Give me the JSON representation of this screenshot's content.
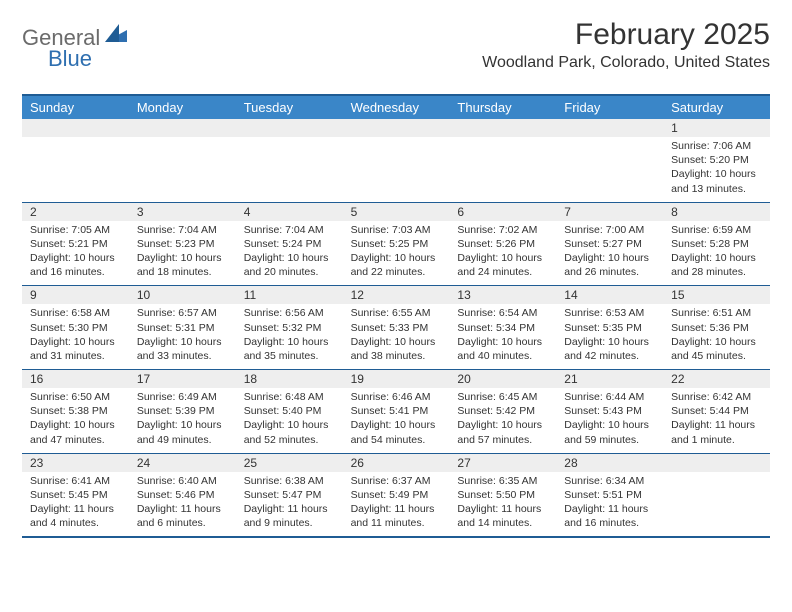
{
  "logo": {
    "part1": "General",
    "part2": "Blue"
  },
  "title": "February 2025",
  "location": "Woodland Park, Colorado, United States",
  "colors": {
    "header_bar": "#3a86c8",
    "header_border": "#1f5c94",
    "num_bg": "#eeeeee",
    "text": "#333333",
    "logo_gray": "#6b6b6b",
    "logo_blue": "#2f6fb0",
    "white": "#ffffff"
  },
  "day_names": [
    "Sunday",
    "Monday",
    "Tuesday",
    "Wednesday",
    "Thursday",
    "Friday",
    "Saturday"
  ],
  "weeks": [
    {
      "nums": [
        "",
        "",
        "",
        "",
        "",
        "",
        "1"
      ],
      "cells": [
        null,
        null,
        null,
        null,
        null,
        null,
        {
          "sr": "Sunrise: 7:06 AM",
          "ss": "Sunset: 5:20 PM",
          "d1": "Daylight: 10 hours",
          "d2": "and 13 minutes."
        }
      ]
    },
    {
      "nums": [
        "2",
        "3",
        "4",
        "5",
        "6",
        "7",
        "8"
      ],
      "cells": [
        {
          "sr": "Sunrise: 7:05 AM",
          "ss": "Sunset: 5:21 PM",
          "d1": "Daylight: 10 hours",
          "d2": "and 16 minutes."
        },
        {
          "sr": "Sunrise: 7:04 AM",
          "ss": "Sunset: 5:23 PM",
          "d1": "Daylight: 10 hours",
          "d2": "and 18 minutes."
        },
        {
          "sr": "Sunrise: 7:04 AM",
          "ss": "Sunset: 5:24 PM",
          "d1": "Daylight: 10 hours",
          "d2": "and 20 minutes."
        },
        {
          "sr": "Sunrise: 7:03 AM",
          "ss": "Sunset: 5:25 PM",
          "d1": "Daylight: 10 hours",
          "d2": "and 22 minutes."
        },
        {
          "sr": "Sunrise: 7:02 AM",
          "ss": "Sunset: 5:26 PM",
          "d1": "Daylight: 10 hours",
          "d2": "and 24 minutes."
        },
        {
          "sr": "Sunrise: 7:00 AM",
          "ss": "Sunset: 5:27 PM",
          "d1": "Daylight: 10 hours",
          "d2": "and 26 minutes."
        },
        {
          "sr": "Sunrise: 6:59 AM",
          "ss": "Sunset: 5:28 PM",
          "d1": "Daylight: 10 hours",
          "d2": "and 28 minutes."
        }
      ]
    },
    {
      "nums": [
        "9",
        "10",
        "11",
        "12",
        "13",
        "14",
        "15"
      ],
      "cells": [
        {
          "sr": "Sunrise: 6:58 AM",
          "ss": "Sunset: 5:30 PM",
          "d1": "Daylight: 10 hours",
          "d2": "and 31 minutes."
        },
        {
          "sr": "Sunrise: 6:57 AM",
          "ss": "Sunset: 5:31 PM",
          "d1": "Daylight: 10 hours",
          "d2": "and 33 minutes."
        },
        {
          "sr": "Sunrise: 6:56 AM",
          "ss": "Sunset: 5:32 PM",
          "d1": "Daylight: 10 hours",
          "d2": "and 35 minutes."
        },
        {
          "sr": "Sunrise: 6:55 AM",
          "ss": "Sunset: 5:33 PM",
          "d1": "Daylight: 10 hours",
          "d2": "and 38 minutes."
        },
        {
          "sr": "Sunrise: 6:54 AM",
          "ss": "Sunset: 5:34 PM",
          "d1": "Daylight: 10 hours",
          "d2": "and 40 minutes."
        },
        {
          "sr": "Sunrise: 6:53 AM",
          "ss": "Sunset: 5:35 PM",
          "d1": "Daylight: 10 hours",
          "d2": "and 42 minutes."
        },
        {
          "sr": "Sunrise: 6:51 AM",
          "ss": "Sunset: 5:36 PM",
          "d1": "Daylight: 10 hours",
          "d2": "and 45 minutes."
        }
      ]
    },
    {
      "nums": [
        "16",
        "17",
        "18",
        "19",
        "20",
        "21",
        "22"
      ],
      "cells": [
        {
          "sr": "Sunrise: 6:50 AM",
          "ss": "Sunset: 5:38 PM",
          "d1": "Daylight: 10 hours",
          "d2": "and 47 minutes."
        },
        {
          "sr": "Sunrise: 6:49 AM",
          "ss": "Sunset: 5:39 PM",
          "d1": "Daylight: 10 hours",
          "d2": "and 49 minutes."
        },
        {
          "sr": "Sunrise: 6:48 AM",
          "ss": "Sunset: 5:40 PM",
          "d1": "Daylight: 10 hours",
          "d2": "and 52 minutes."
        },
        {
          "sr": "Sunrise: 6:46 AM",
          "ss": "Sunset: 5:41 PM",
          "d1": "Daylight: 10 hours",
          "d2": "and 54 minutes."
        },
        {
          "sr": "Sunrise: 6:45 AM",
          "ss": "Sunset: 5:42 PM",
          "d1": "Daylight: 10 hours",
          "d2": "and 57 minutes."
        },
        {
          "sr": "Sunrise: 6:44 AM",
          "ss": "Sunset: 5:43 PM",
          "d1": "Daylight: 10 hours",
          "d2": "and 59 minutes."
        },
        {
          "sr": "Sunrise: 6:42 AM",
          "ss": "Sunset: 5:44 PM",
          "d1": "Daylight: 11 hours",
          "d2": "and 1 minute."
        }
      ]
    },
    {
      "nums": [
        "23",
        "24",
        "25",
        "26",
        "27",
        "28",
        ""
      ],
      "cells": [
        {
          "sr": "Sunrise: 6:41 AM",
          "ss": "Sunset: 5:45 PM",
          "d1": "Daylight: 11 hours",
          "d2": "and 4 minutes."
        },
        {
          "sr": "Sunrise: 6:40 AM",
          "ss": "Sunset: 5:46 PM",
          "d1": "Daylight: 11 hours",
          "d2": "and 6 minutes."
        },
        {
          "sr": "Sunrise: 6:38 AM",
          "ss": "Sunset: 5:47 PM",
          "d1": "Daylight: 11 hours",
          "d2": "and 9 minutes."
        },
        {
          "sr": "Sunrise: 6:37 AM",
          "ss": "Sunset: 5:49 PM",
          "d1": "Daylight: 11 hours",
          "d2": "and 11 minutes."
        },
        {
          "sr": "Sunrise: 6:35 AM",
          "ss": "Sunset: 5:50 PM",
          "d1": "Daylight: 11 hours",
          "d2": "and 14 minutes."
        },
        {
          "sr": "Sunrise: 6:34 AM",
          "ss": "Sunset: 5:51 PM",
          "d1": "Daylight: 11 hours",
          "d2": "and 16 minutes."
        },
        null
      ]
    }
  ]
}
